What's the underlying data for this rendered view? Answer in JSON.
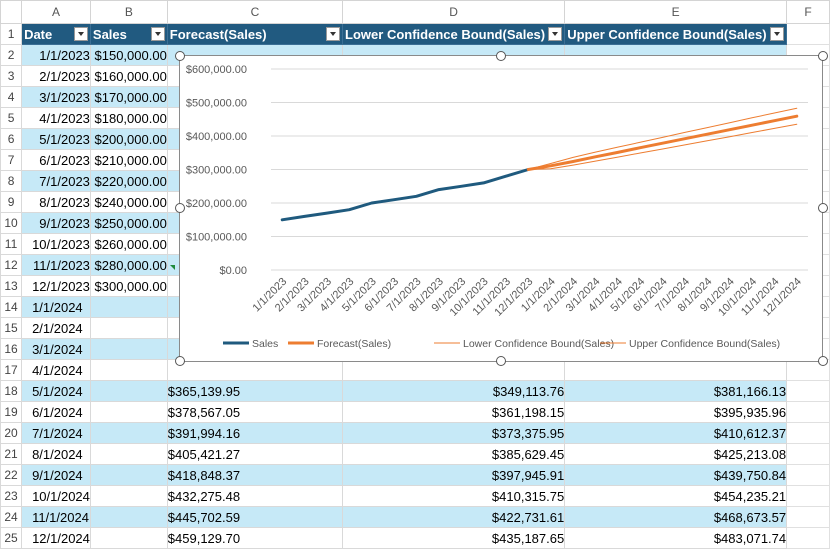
{
  "column_letters": [
    "A",
    "B",
    "C",
    "D",
    "E",
    "F"
  ],
  "headers": {
    "date": "Date",
    "sales": "Sales",
    "forecast": "Forecast(Sales)",
    "lower": "Lower Confidence Bound(Sales)",
    "upper": "Upper Confidence Bound(Sales)"
  },
  "rows": [
    {
      "row": "2",
      "date": "1/1/2023",
      "sales": "$150,000.00",
      "forecast": "",
      "lower": "",
      "upper": ""
    },
    {
      "row": "3",
      "date": "2/1/2023",
      "sales": "$160,000.00",
      "forecast": "",
      "lower": "",
      "upper": ""
    },
    {
      "row": "4",
      "date": "3/1/2023",
      "sales": "$170,000.00",
      "forecast": "",
      "lower": "",
      "upper": ""
    },
    {
      "row": "5",
      "date": "4/1/2023",
      "sales": "$180,000.00",
      "forecast": "",
      "lower": "",
      "upper": ""
    },
    {
      "row": "6",
      "date": "5/1/2023",
      "sales": "$200,000.00",
      "forecast": "",
      "lower": "",
      "upper": ""
    },
    {
      "row": "7",
      "date": "6/1/2023",
      "sales": "$210,000.00",
      "forecast": "",
      "lower": "",
      "upper": ""
    },
    {
      "row": "8",
      "date": "7/1/2023",
      "sales": "$220,000.00",
      "forecast": "",
      "lower": "",
      "upper": ""
    },
    {
      "row": "9",
      "date": "8/1/2023",
      "sales": "$240,000.00",
      "forecast": "",
      "lower": "",
      "upper": ""
    },
    {
      "row": "10",
      "date": "9/1/2023",
      "sales": "$250,000.00",
      "forecast": "",
      "lower": "",
      "upper": ""
    },
    {
      "row": "11",
      "date": "10/1/2023",
      "sales": "$260,000.00",
      "forecast": "",
      "lower": "",
      "upper": ""
    },
    {
      "row": "12",
      "date": "11/1/2023",
      "sales": "$280,000.00",
      "forecast": "",
      "lower": "",
      "upper": ""
    },
    {
      "row": "13",
      "date": "12/1/2023",
      "sales": "$300,000.00",
      "forecast": "",
      "lower": "",
      "upper": ""
    },
    {
      "row": "14",
      "date": "1/1/2024",
      "sales": "",
      "forecast": "",
      "lower": "",
      "upper": ""
    },
    {
      "row": "15",
      "date": "2/1/2024",
      "sales": "",
      "forecast": "",
      "lower": "",
      "upper": ""
    },
    {
      "row": "16",
      "date": "3/1/2024",
      "sales": "",
      "forecast": "",
      "lower": "",
      "upper": ""
    },
    {
      "row": "17",
      "date": "4/1/2024",
      "sales": "",
      "forecast": "",
      "lower": "",
      "upper": ""
    },
    {
      "row": "18",
      "date": "5/1/2024",
      "sales": "",
      "forecast": "$365,139.95",
      "lower": "$349,113.76",
      "upper": "$381,166.13"
    },
    {
      "row": "19",
      "date": "6/1/2024",
      "sales": "",
      "forecast": "$378,567.05",
      "lower": "$361,198.15",
      "upper": "$395,935.96"
    },
    {
      "row": "20",
      "date": "7/1/2024",
      "sales": "",
      "forecast": "$391,994.16",
      "lower": "$373,375.95",
      "upper": "$410,612.37"
    },
    {
      "row": "21",
      "date": "8/1/2024",
      "sales": "",
      "forecast": "$405,421.27",
      "lower": "$385,629.45",
      "upper": "$425,213.08"
    },
    {
      "row": "22",
      "date": "9/1/2024",
      "sales": "",
      "forecast": "$418,848.37",
      "lower": "$397,945.91",
      "upper": "$439,750.84"
    },
    {
      "row": "23",
      "date": "10/1/2024",
      "sales": "",
      "forecast": "$432,275.48",
      "lower": "$410,315.75",
      "upper": "$454,235.21"
    },
    {
      "row": "24",
      "date": "11/1/2024",
      "sales": "",
      "forecast": "$445,702.59",
      "lower": "$422,731.61",
      "upper": "$468,673.57"
    },
    {
      "row": "25",
      "date": "12/1/2024",
      "sales": "",
      "forecast": "$459,129.70",
      "lower": "$435,187.65",
      "upper": "$483,071.74"
    }
  ],
  "chart_data": {
    "type": "line",
    "categories": [
      "1/1/2023",
      "2/1/2023",
      "3/1/2023",
      "4/1/2023",
      "5/1/2023",
      "6/1/2023",
      "7/1/2023",
      "8/1/2023",
      "9/1/2023",
      "10/1/2023",
      "11/1/2023",
      "12/1/2023",
      "1/1/2024",
      "2/1/2024",
      "3/1/2024",
      "4/1/2024",
      "5/1/2024",
      "6/1/2024",
      "7/1/2024",
      "8/1/2024",
      "9/1/2024",
      "10/1/2024",
      "11/1/2024",
      "12/1/2024"
    ],
    "series": [
      {
        "name": "Sales",
        "color": "#1f5a7e",
        "values": [
          150000,
          160000,
          170000,
          180000,
          200000,
          210000,
          220000,
          240000,
          250000,
          260000,
          280000,
          300000,
          null,
          null,
          null,
          null,
          null,
          null,
          null,
          null,
          null,
          null,
          null,
          null
        ]
      },
      {
        "name": "Forecast(Sales)",
        "color": "#ed7d31",
        "values": [
          null,
          null,
          null,
          null,
          null,
          null,
          null,
          null,
          null,
          null,
          null,
          300000,
          311000,
          324000,
          338000,
          351000,
          365139.95,
          378567.05,
          391994.16,
          405421.27,
          418848.37,
          432275.48,
          445702.59,
          459129.7
        ]
      },
      {
        "name": "Lower Confidence Bound(Sales)",
        "color": "#ed7d31",
        "values": [
          null,
          null,
          null,
          null,
          null,
          null,
          null,
          null,
          null,
          null,
          null,
          300000,
          302000,
          313000,
          325000,
          337000,
          349113.76,
          361198.15,
          373375.95,
          385629.45,
          397945.91,
          410315.75,
          422731.61,
          435187.65
        ]
      },
      {
        "name": "Upper Confidence Bound(Sales)",
        "color": "#ed7d31",
        "values": [
          null,
          null,
          null,
          null,
          null,
          null,
          null,
          null,
          null,
          null,
          null,
          300000,
          318000,
          336000,
          352000,
          367000,
          381166.13,
          395935.96,
          410612.37,
          425213.08,
          439750.84,
          454235.21,
          468673.57,
          483071.74
        ]
      }
    ],
    "ylim": [
      0,
      600000
    ],
    "ticks": [
      "$0.00",
      "$100,000.00",
      "$200,000.00",
      "$300,000.00",
      "$400,000.00",
      "$500,000.00",
      "$600,000.00"
    ],
    "legend": [
      "Sales",
      "Forecast(Sales)",
      "Lower Confidence Bound(Sales)",
      "Upper Confidence Bound(Sales)"
    ],
    "legend_position": "bottom"
  }
}
